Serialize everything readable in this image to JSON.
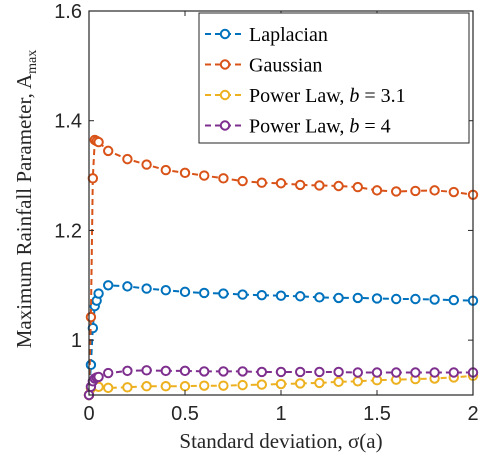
{
  "chart_data": {
    "type": "line",
    "xlabel": "Standard deviation, σ(a)",
    "ylabel": "Maximum Rainfall Parameter, A",
    "ylabel_sub": "max",
    "xlim": [
      0,
      2
    ],
    "ylim": [
      0.9,
      1.6
    ],
    "xticks": [
      0,
      0.5,
      1,
      1.5,
      2
    ],
    "xtick_labels": [
      "0",
      "0.5",
      "1",
      "1.5",
      "2"
    ],
    "yticks": [
      1,
      1.2,
      1.4,
      1.6
    ],
    "ytick_labels": [
      "1",
      "1.2",
      "1.4",
      "1.6"
    ],
    "grid": false,
    "legend_position": "top-right",
    "x": [
      0,
      0.01,
      0.02,
      0.03,
      0.04,
      0.05,
      0.1,
      0.2,
      0.3,
      0.4,
      0.5,
      0.6,
      0.7,
      0.8,
      0.9,
      1.0,
      1.1,
      1.2,
      1.3,
      1.4,
      1.5,
      1.6,
      1.7,
      1.8,
      1.9,
      2.0
    ],
    "series": [
      {
        "name": "Laplacian",
        "color": "#0072BD",
        "values": [
          0.9,
          0.955,
          1.022,
          1.062,
          1.072,
          1.085,
          1.1,
          1.098,
          1.094,
          1.091,
          1.088,
          1.086,
          1.085,
          1.083,
          1.082,
          1.081,
          1.08,
          1.078,
          1.077,
          1.077,
          1.076,
          1.075,
          1.075,
          1.074,
          1.073,
          1.072
        ]
      },
      {
        "name": "Gaussian",
        "color": "#D95319",
        "values": [
          0.9,
          1.042,
          1.295,
          1.365,
          1.363,
          1.361,
          1.345,
          1.33,
          1.32,
          1.31,
          1.305,
          1.3,
          1.295,
          1.29,
          1.287,
          1.286,
          1.283,
          1.282,
          1.281,
          1.279,
          1.273,
          1.271,
          1.272,
          1.273,
          1.27,
          1.265
        ]
      },
      {
        "name": "Power Law, b = 3.1",
        "label_main": "Power Law, ",
        "label_var": "b",
        "label_rest": " = 3.1",
        "color": "#EDB120",
        "values": [
          0.9,
          0.912,
          0.918,
          0.92,
          0.917,
          0.915,
          0.913,
          0.914,
          0.916,
          0.916,
          0.916,
          0.917,
          0.917,
          0.918,
          0.919,
          0.92,
          0.921,
          0.922,
          0.924,
          0.925,
          0.927,
          0.928,
          0.929,
          0.93,
          0.932,
          0.935
        ]
      },
      {
        "name": "Power Law, b = 4",
        "label_main": "Power Law, ",
        "label_var": "b",
        "label_rest": " = 4",
        "color": "#7E2F8E",
        "values": [
          0.9,
          0.915,
          0.925,
          0.93,
          0.932,
          0.933,
          0.94,
          0.944,
          0.945,
          0.944,
          0.944,
          0.943,
          0.943,
          0.943,
          0.942,
          0.942,
          0.942,
          0.942,
          0.942,
          0.941,
          0.941,
          0.941,
          0.941,
          0.941,
          0.941,
          0.941
        ]
      }
    ]
  }
}
